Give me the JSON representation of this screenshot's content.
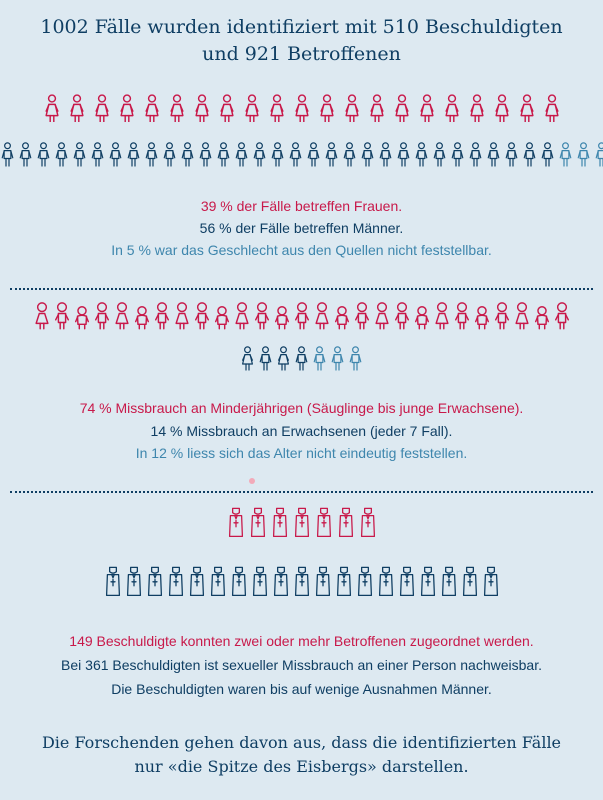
{
  "title": {
    "line1": "1002 Fälle wurden identifiziert mit 510 Beschuldigten",
    "line2": "und 921 Betroffenen"
  },
  "colors": {
    "red": "#c8194a",
    "navy": "#0f3e63",
    "teal": "#3e86ad",
    "background": "#dde9f1"
  },
  "gender_section": {
    "women_icons": 21,
    "men_icons": 31,
    "unknown_icons": 3,
    "women_text": "39 % der Fälle betreffen Frauen.",
    "men_text": "56 % der Fälle betreffen Männer.",
    "unknown_text": "In 5 % war das Geschlecht aus den Quellen nicht feststellbar."
  },
  "age_section": {
    "minor_icons": 27,
    "adult_icons": 4,
    "unknown_icons": 3,
    "minors_text": "74 % Missbrauch an Minderjährigen (Säuglinge bis junge Erwachsene).",
    "adults_text": "14 % Missbrauch an Erwachsenen (jeder 7 Fall).",
    "unknown_text": "In 12 % liess sich das Alter nicht eindeutig feststellen."
  },
  "accused_section": {
    "multiple_victim_icons": 7,
    "single_victim_icons": 19,
    "multiple_text": "149 Beschuldigte konnten zwei oder mehr Betroffenen zugeordnet werden.",
    "single_text": "Bei 361 Beschuldigten ist sexueller Missbrauch an einer Person nachweisbar.",
    "male_text": "Die Beschuldigten waren bis auf wenige Ausnahmen Männer."
  },
  "footer": {
    "line1": "Die Forschenden gehen davon aus, dass die identifizierten Fälle",
    "line2": "nur «die Spitze des Eisbergs» darstellen."
  }
}
